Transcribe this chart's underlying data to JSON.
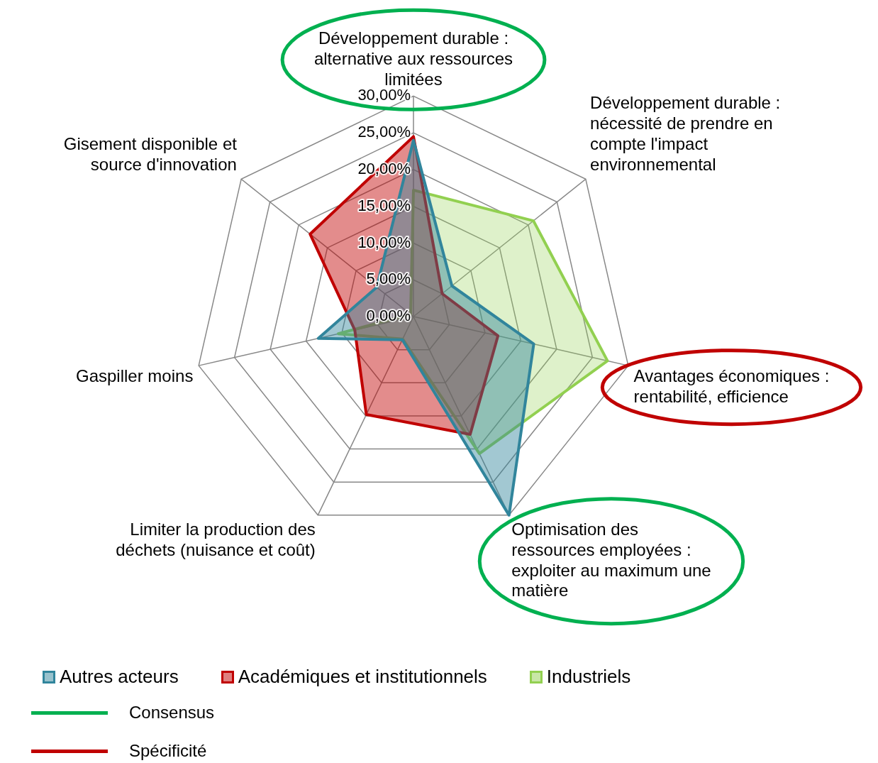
{
  "chart_data": {
    "type": "radar",
    "categories": [
      "Développement durable : alternative aux ressources limitées",
      "Développement durable : nécessité de prendre en compte l'impact environnemental",
      "Avantages économiques : rentabilité, efficience",
      "Optimisation des ressources employées : exploiter au maximum une matière",
      "Limiter la production des déchets (nuisance et coût)",
      "Gaspiller moins",
      "Gisement disponible et source d'innovation"
    ],
    "series": [
      {
        "name": "Autres acteurs",
        "color": "#31859c",
        "values": [
          24,
          6.7,
          16.8,
          30,
          3.5,
          13.3,
          6.4
        ]
      },
      {
        "name": "Académiques et institutionnels",
        "color": "#c00000",
        "values": [
          24.5,
          5,
          11.8,
          17.8,
          14.8,
          8.2,
          18
        ]
      },
      {
        "name": "Industriels",
        "color": "#92d050",
        "values": [
          17.2,
          20.9,
          27.1,
          20.7,
          3.4,
          10.5,
          0.5
        ]
      }
    ],
    "ylim": [
      0,
      30
    ],
    "yticks": [
      {
        "value": 0,
        "label": "0,00%"
      },
      {
        "value": 5,
        "label": "5,00%"
      },
      {
        "value": 10,
        "label": "10,00%"
      },
      {
        "value": 15,
        "label": "15,00%"
      },
      {
        "value": 20,
        "label": "20,00%"
      },
      {
        "value": 25,
        "label": "25,00%"
      },
      {
        "value": 30,
        "label": "30,00%"
      }
    ],
    "grid": true,
    "legend": "bottom",
    "annotations": [
      "Consensus",
      "Spécificité"
    ]
  }
}
